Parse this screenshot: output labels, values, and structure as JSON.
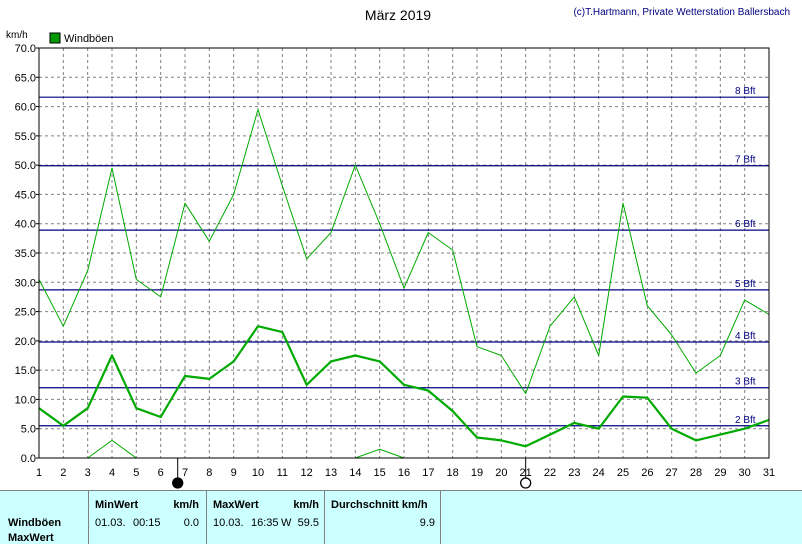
{
  "chart_data": {
    "type": "line",
    "title": "März 2019",
    "copyright": "(c)T.Hartmann, Private Wetterstation Ballersbach",
    "ylabel": "km/h",
    "ylim": [
      0,
      70
    ],
    "y_ticks": [
      "0.0",
      "5.0",
      "10.0",
      "15.0",
      "20.0",
      "25.0",
      "30.0",
      "35.0",
      "40.0",
      "45.0",
      "50.0",
      "55.0",
      "60.0",
      "65.0",
      "70.0"
    ],
    "x": [
      1,
      2,
      3,
      4,
      5,
      6,
      7,
      8,
      9,
      10,
      11,
      12,
      13,
      14,
      15,
      16,
      17,
      18,
      19,
      20,
      21,
      22,
      23,
      24,
      25,
      26,
      27,
      28,
      29,
      30,
      31
    ],
    "grid": true,
    "legend": "top-left",
    "beaufort_lines": [
      {
        "label": "2 Bft",
        "value": 5.5
      },
      {
        "label": "3 Bft",
        "value": 12
      },
      {
        "label": "4 Bft",
        "value": 19.8
      },
      {
        "label": "5 Bft",
        "value": 28.7
      },
      {
        "label": "6 Bft",
        "value": 38.9
      },
      {
        "label": "7 Bft",
        "value": 49.9
      },
      {
        "label": "8 Bft",
        "value": 61.6
      }
    ],
    "series": [
      {
        "name": "Windböen",
        "role": "max",
        "color": "#00aa00",
        "values": [
          30.5,
          22.5,
          32,
          49.5,
          30.5,
          27.5,
          43.5,
          37,
          45,
          59.5,
          46.5,
          34,
          38.5,
          50,
          40,
          29,
          38.5,
          35.5,
          19,
          17.5,
          11,
          22.5,
          27.5,
          17.5,
          43.5,
          26,
          21,
          14.5,
          17.5,
          27,
          24.5
        ]
      },
      {
        "role": "mean",
        "color": "#00aa00",
        "values": [
          8.5,
          5.5,
          8.5,
          17.5,
          8.5,
          7,
          14,
          13.5,
          16.5,
          22.5,
          21.5,
          12.5,
          16.5,
          17.5,
          16.5,
          12.5,
          11.5,
          8,
          3.5,
          3,
          2,
          4,
          6,
          5,
          10.5,
          10.3,
          5,
          3,
          4,
          5,
          6.5
        ]
      },
      {
        "role": "min",
        "color": "#00aa00",
        "values": [
          0,
          0,
          0,
          3,
          0,
          0,
          0,
          0,
          0,
          0,
          0,
          0,
          0,
          0,
          1.5,
          0,
          0,
          0,
          0,
          0,
          0,
          0,
          0,
          0,
          0,
          0,
          0,
          0,
          0,
          0,
          0
        ]
      }
    ],
    "moon_phases": [
      {
        "day": 6.7,
        "phase": "new"
      },
      {
        "day": 21,
        "phase": "full"
      }
    ]
  },
  "legend": {
    "label": "Windböen",
    "color": "#009900"
  },
  "info": {
    "row1_label": "Windböen",
    "row2_label": "MaxWert",
    "min_header": "MinWert",
    "min_unit": "km/h",
    "min_date": "01.03.",
    "min_time": "00:15",
    "min_value": "0.0",
    "max_header": "MaxWert",
    "max_unit": "km/h",
    "max_date": "10.03.",
    "max_time": "16:35",
    "max_dir": "W",
    "max_value": "59.5",
    "avg_header": "Durchschnitt km/h",
    "avg_value": "9.9"
  }
}
